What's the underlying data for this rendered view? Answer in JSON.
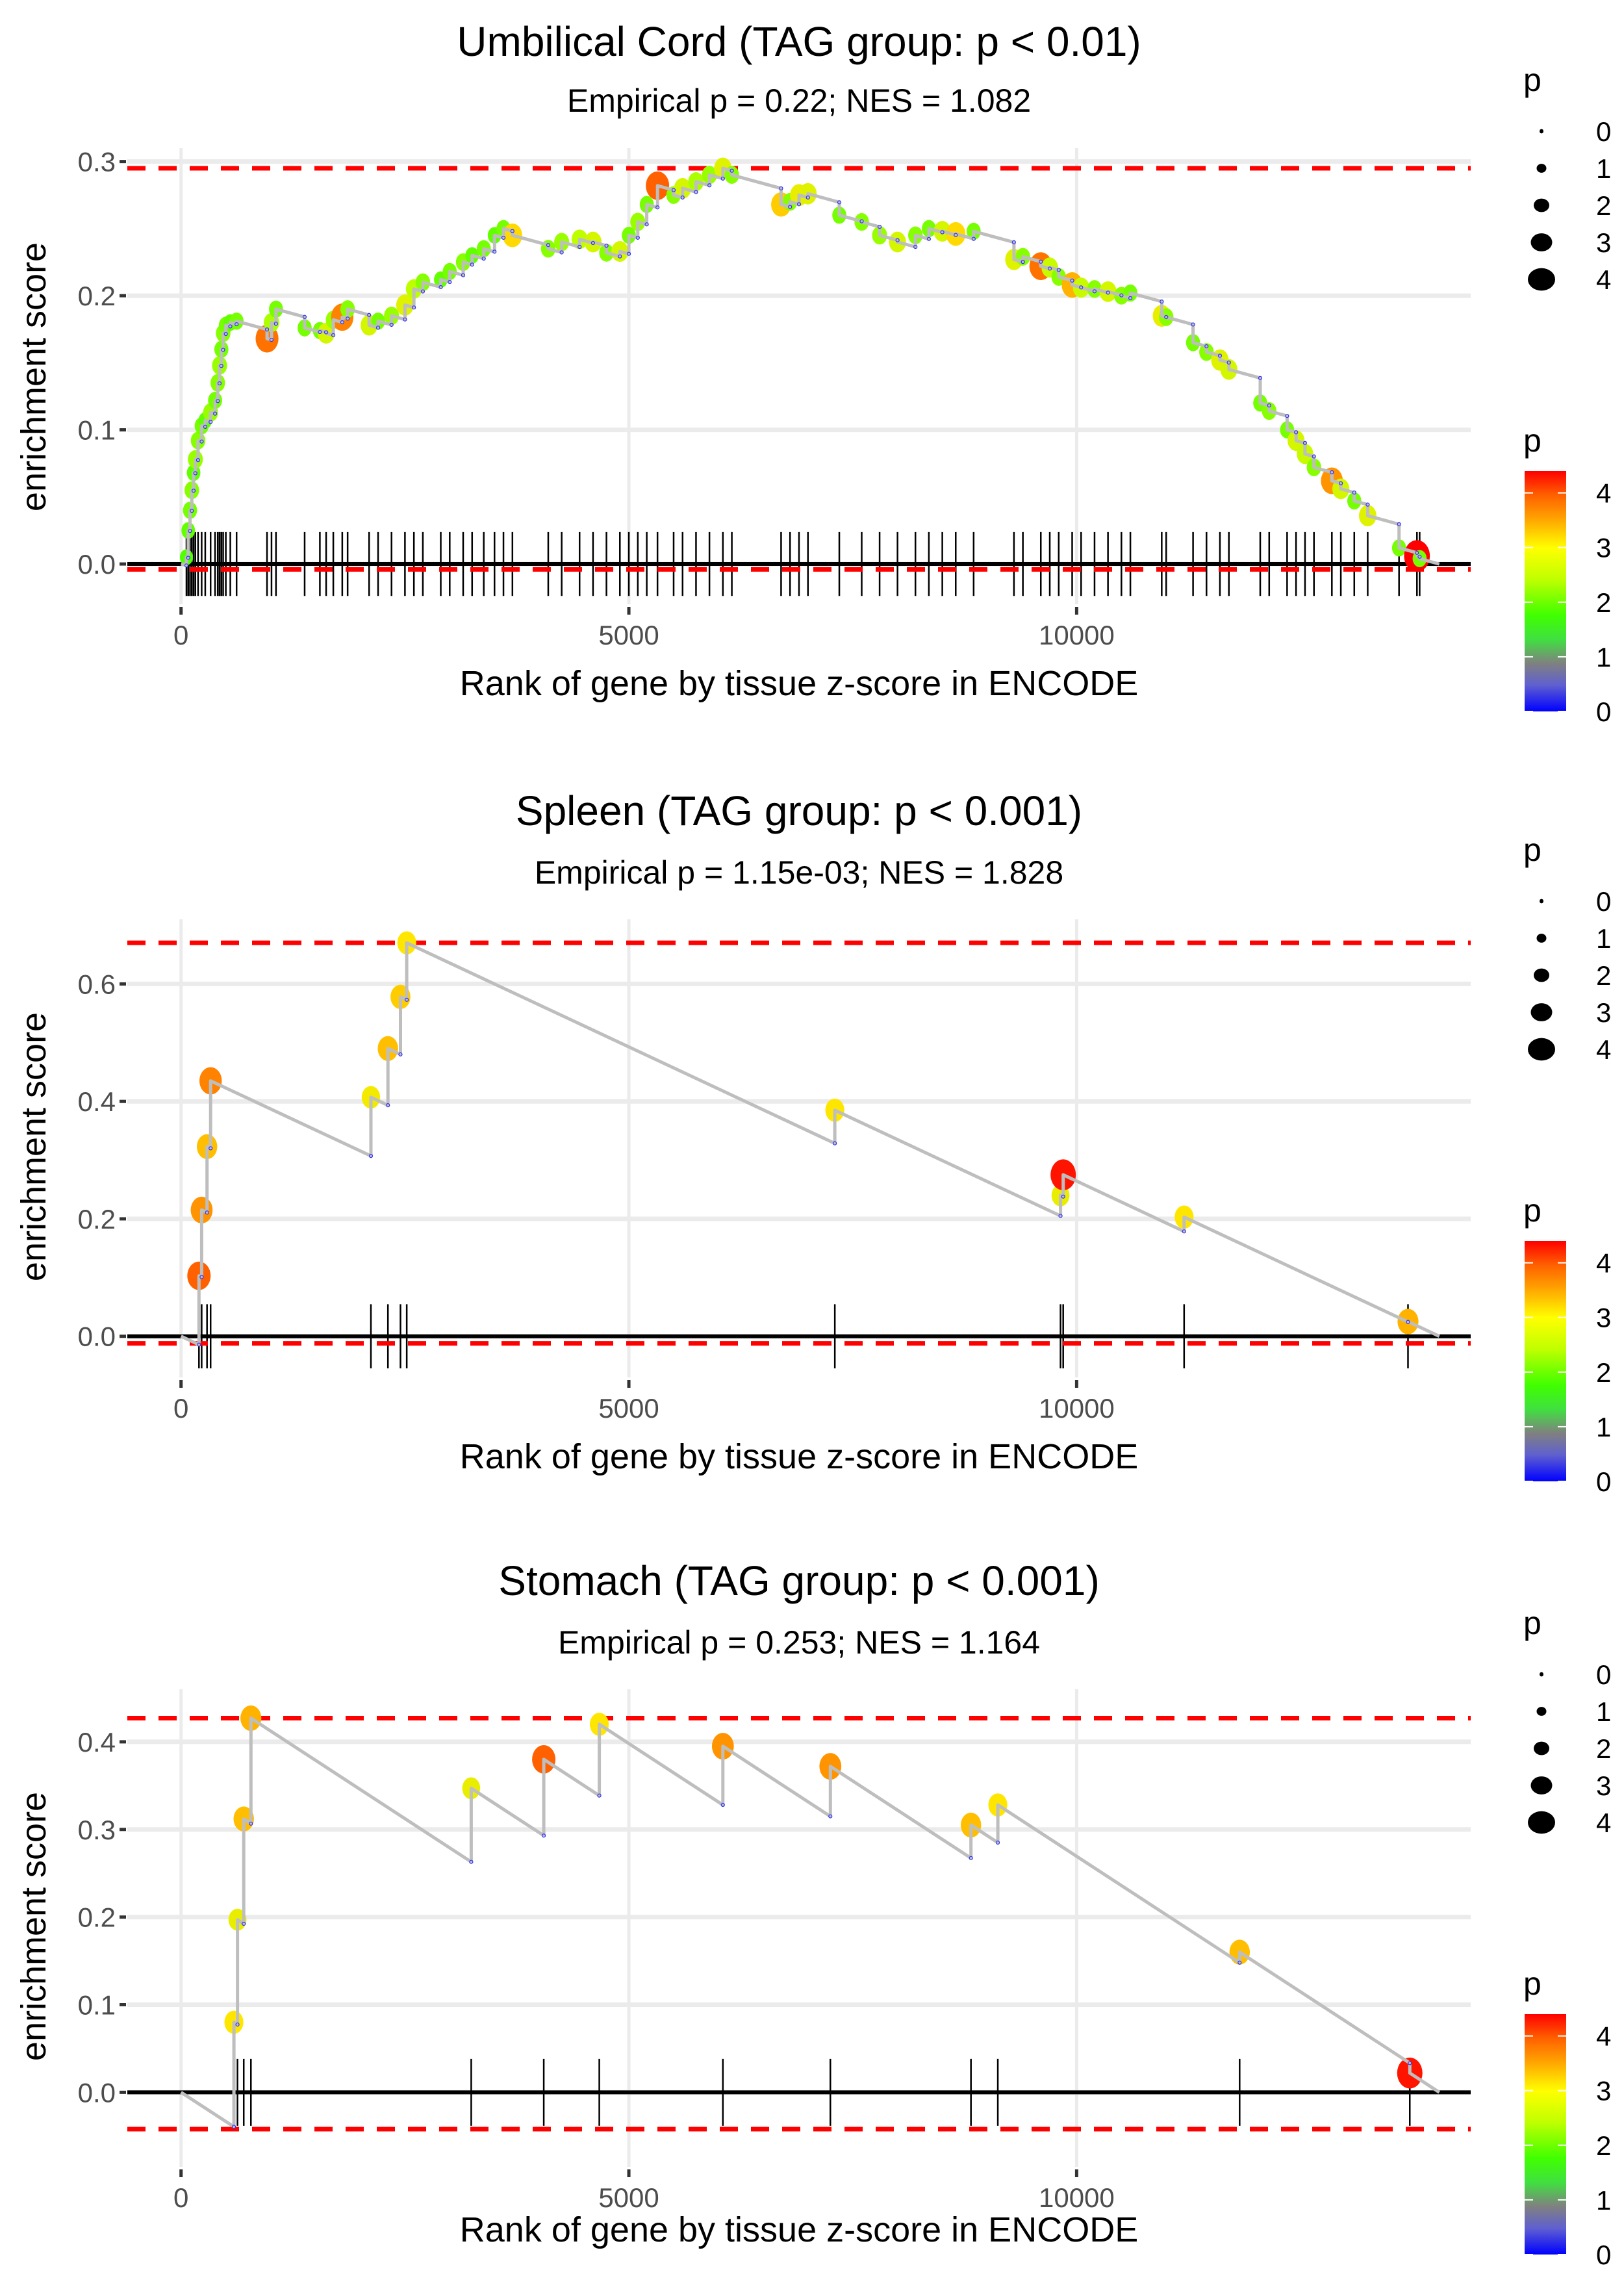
{
  "chart_data": [
    {
      "type": "line",
      "title": "Umbilical Cord (TAG group: p < 0.01)",
      "subtitle": "Empirical p = 0.22; NES = 1.082",
      "xlabel": "Rank of gene by tissue z-score in ENCODE",
      "ylabel": "enrichment score",
      "xlim": [
        -600,
        14400
      ],
      "ylim": [
        -0.03,
        0.31
      ],
      "xticks": [
        0,
        5000,
        10000
      ],
      "xtick_labels": [
        "0",
        "5000",
        "10000"
      ],
      "yticks": [
        0.0,
        0.1,
        0.2,
        0.3
      ],
      "ytick_labels": [
        "0.0",
        "0.1",
        "0.2",
        "0.3"
      ],
      "max_es_line": 0.295,
      "min_es_line": -0.004,
      "end_rank": 14050,
      "hits": [
        [
          60,
          0.005,
          1.8
        ],
        [
          80,
          0.025,
          1.9
        ],
        [
          100,
          0.04,
          2.0
        ],
        [
          120,
          0.055,
          2.1
        ],
        [
          140,
          0.068,
          1.9
        ],
        [
          160,
          0.078,
          2.2
        ],
        [
          190,
          0.092,
          2.1
        ],
        [
          230,
          0.103,
          2.0
        ],
        [
          270,
          0.107,
          1.9
        ],
        [
          330,
          0.113,
          2.2
        ],
        [
          380,
          0.122,
          2.0
        ],
        [
          410,
          0.135,
          2.1
        ],
        [
          430,
          0.148,
          2.2
        ],
        [
          450,
          0.16,
          2.0
        ],
        [
          470,
          0.172,
          2.1
        ],
        [
          500,
          0.178,
          2.0
        ],
        [
          550,
          0.18,
          1.9
        ],
        [
          620,
          0.181,
          2.0
        ],
        [
          960,
          0.168,
          3.8
        ],
        [
          1010,
          0.18,
          2.3
        ],
        [
          1060,
          0.19,
          2.0
        ],
        [
          1380,
          0.176,
          2.0
        ],
        [
          1550,
          0.174,
          2.0
        ],
        [
          1620,
          0.172,
          2.6
        ],
        [
          1700,
          0.182,
          2.2
        ],
        [
          1800,
          0.184,
          3.7
        ],
        [
          1860,
          0.19,
          2.1
        ],
        [
          2100,
          0.178,
          2.6
        ],
        [
          2200,
          0.181,
          2.0
        ],
        [
          2350,
          0.185,
          2.2
        ],
        [
          2500,
          0.193,
          2.7
        ],
        [
          2600,
          0.205,
          2.4
        ],
        [
          2700,
          0.21,
          2.1
        ],
        [
          2900,
          0.212,
          1.9
        ],
        [
          3000,
          0.218,
          2.0
        ],
        [
          3150,
          0.225,
          2.1
        ],
        [
          3250,
          0.23,
          1.9
        ],
        [
          3380,
          0.235,
          2.0
        ],
        [
          3500,
          0.245,
          1.9
        ],
        [
          3600,
          0.25,
          2.0
        ],
        [
          3700,
          0.245,
          3.1
        ],
        [
          4100,
          0.235,
          2.1
        ],
        [
          4250,
          0.24,
          2.2
        ],
        [
          4450,
          0.242,
          2.4
        ],
        [
          4600,
          0.24,
          2.6
        ],
        [
          4750,
          0.232,
          2.1
        ],
        [
          4900,
          0.233,
          2.6
        ],
        [
          5000,
          0.245,
          2.0
        ],
        [
          5100,
          0.255,
          2.2
        ],
        [
          5200,
          0.268,
          2.0
        ],
        [
          5320,
          0.282,
          3.9
        ],
        [
          5500,
          0.275,
          2.1
        ],
        [
          5600,
          0.28,
          2.6
        ],
        [
          5750,
          0.285,
          2.3
        ],
        [
          5900,
          0.29,
          2.2
        ],
        [
          6050,
          0.295,
          2.7
        ],
        [
          6150,
          0.29,
          2.1
        ],
        [
          6700,
          0.268,
          3.2
        ],
        [
          6800,
          0.27,
          2.1
        ],
        [
          6900,
          0.275,
          2.8
        ],
        [
          7000,
          0.276,
          2.7
        ],
        [
          7350,
          0.26,
          2.0
        ],
        [
          7600,
          0.255,
          2.1
        ],
        [
          7800,
          0.245,
          2.2
        ],
        [
          8000,
          0.24,
          2.6
        ],
        [
          8200,
          0.245,
          2.1
        ],
        [
          8350,
          0.25,
          2.0
        ],
        [
          8500,
          0.248,
          2.6
        ],
        [
          8650,
          0.246,
          3.1
        ],
        [
          8850,
          0.248,
          2.0
        ],
        [
          9300,
          0.227,
          2.7
        ],
        [
          9400,
          0.229,
          2.1
        ],
        [
          9600,
          0.222,
          3.8
        ],
        [
          9700,
          0.221,
          2.5
        ],
        [
          9800,
          0.214,
          2.1
        ],
        [
          9950,
          0.208,
          3.4
        ],
        [
          10050,
          0.206,
          2.5
        ],
        [
          10200,
          0.205,
          2.1
        ],
        [
          10350,
          0.203,
          2.6
        ],
        [
          10500,
          0.2,
          2.1
        ],
        [
          10600,
          0.202,
          2.0
        ],
        [
          10950,
          0.185,
          2.8
        ],
        [
          11000,
          0.184,
          2.1
        ],
        [
          11300,
          0.165,
          2.0
        ],
        [
          11450,
          0.158,
          2.1
        ],
        [
          11600,
          0.152,
          2.7
        ],
        [
          11700,
          0.145,
          2.6
        ],
        [
          12050,
          0.12,
          2.0
        ],
        [
          12150,
          0.114,
          2.1
        ],
        [
          12350,
          0.1,
          2.0
        ],
        [
          12450,
          0.092,
          2.6
        ],
        [
          12550,
          0.082,
          2.5
        ],
        [
          12650,
          0.072,
          2.1
        ],
        [
          12850,
          0.062,
          3.6
        ],
        [
          12950,
          0.056,
          2.6
        ],
        [
          13100,
          0.047,
          2.0
        ],
        [
          13250,
          0.036,
          2.7
        ],
        [
          13600,
          0.012,
          2.0
        ],
        [
          13800,
          0.006,
          4.4
        ],
        [
          13830,
          0.004,
          2.0
        ]
      ],
      "legend_size": {
        "title": "p",
        "labels": [
          "0",
          "1",
          "2",
          "3",
          "4"
        ]
      },
      "legend_color": {
        "title": "p",
        "labels": [
          "4",
          "3",
          "2",
          "1",
          "0"
        ],
        "colors": [
          "#ff0000",
          "#ff8c00",
          "#ffff00",
          "#66ff00",
          "#00ff00",
          "#808080",
          "#0000ff"
        ]
      }
    },
    {
      "type": "line",
      "title": "Spleen (TAG group: p < 0.001)",
      "subtitle": "Empirical p = 1.15e-03; NES = 1.828",
      "xlabel": "Rank of gene by tissue z-score in ENCODE",
      "ylabel": "enrichment score",
      "xlim": [
        -600,
        14400
      ],
      "ylim": [
        -0.07,
        0.71
      ],
      "xticks": [
        0,
        5000,
        10000
      ],
      "xtick_labels": [
        "0",
        "5000",
        "10000"
      ],
      "yticks": [
        0.0,
        0.2,
        0.4,
        0.6
      ],
      "ytick_labels": [
        "0.0",
        "0.2",
        "0.4",
        "0.6"
      ],
      "max_es_line": 0.67,
      "min_es_line": -0.012,
      "end_rank": 14050,
      "hits": [
        [
          200,
          0.103,
          3.9
        ],
        [
          230,
          0.215,
          3.6
        ],
        [
          290,
          0.323,
          3.3
        ],
        [
          330,
          0.435,
          3.7
        ],
        [
          2120,
          0.407,
          2.9
        ],
        [
          2310,
          0.49,
          3.3
        ],
        [
          2450,
          0.578,
          3.2
        ],
        [
          2520,
          0.67,
          3.0
        ],
        [
          7300,
          0.385,
          3.0
        ],
        [
          9820,
          0.24,
          2.8
        ],
        [
          9850,
          0.275,
          4.3
        ],
        [
          11200,
          0.203,
          3.0
        ],
        [
          13700,
          0.025,
          3.4
        ]
      ],
      "legend_size": {
        "title": "p",
        "labels": [
          "0",
          "1",
          "2",
          "3",
          "4"
        ]
      },
      "legend_color": {
        "title": "p",
        "labels": [
          "4",
          "3",
          "2",
          "1",
          "0"
        ]
      }
    },
    {
      "type": "line",
      "title": "Stomach (TAG group: p < 0.001)",
      "subtitle": "Empirical p = 0.253; NES = 1.164",
      "xlabel": "Rank of gene by tissue z-score in ENCODE",
      "ylabel": "enrichment score",
      "xlim": [
        -600,
        14400
      ],
      "ylim": [
        -0.085,
        0.46
      ],
      "xticks": [
        0,
        5000,
        10000
      ],
      "xtick_labels": [
        "0",
        "5000",
        "10000"
      ],
      "yticks": [
        0.0,
        0.1,
        0.2,
        0.3,
        0.4
      ],
      "ytick_labels": [
        "0.0",
        "0.1",
        "0.2",
        "0.3",
        "0.4"
      ],
      "max_es_line": 0.427,
      "min_es_line": -0.042,
      "end_rank": 14050,
      "hits": [
        [
          590,
          0.08,
          3.0
        ],
        [
          630,
          0.197,
          2.8
        ],
        [
          700,
          0.312,
          3.3
        ],
        [
          780,
          0.427,
          3.4
        ],
        [
          3240,
          0.347,
          2.8
        ],
        [
          4050,
          0.38,
          3.9
        ],
        [
          4670,
          0.42,
          3.0
        ],
        [
          6050,
          0.395,
          3.6
        ],
        [
          7250,
          0.372,
          3.6
        ],
        [
          8820,
          0.305,
          3.3
        ],
        [
          9120,
          0.328,
          3.0
        ],
        [
          11820,
          0.16,
          3.3
        ],
        [
          13720,
          0.022,
          4.3
        ]
      ],
      "legend_size": {
        "title": "p",
        "labels": [
          "0",
          "1",
          "2",
          "3",
          "4"
        ]
      },
      "legend_color": {
        "title": "p",
        "labels": [
          "4",
          "3",
          "2",
          "1",
          "0"
        ]
      }
    }
  ]
}
